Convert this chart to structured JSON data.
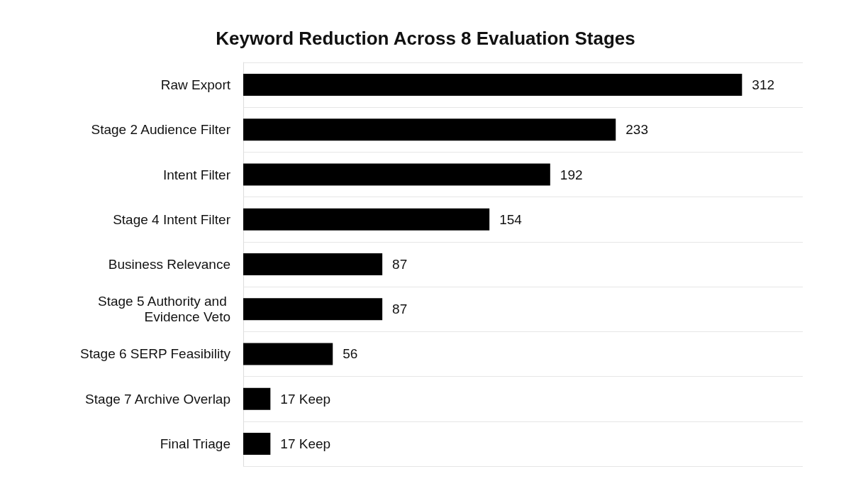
{
  "chart_data": {
    "type": "bar",
    "orientation": "horizontal",
    "title": "Keyword Reduction Across 8 Evaluation Stages",
    "categories": [
      "Raw Export",
      "Stage 2 Audience Filter",
      "Intent Filter",
      "Stage 4 Intent Filter",
      "Business Relevance",
      "Stage 5 Authority and Evidence Veto",
      "Stage 6 SERP Feasibility",
      "Stage 7 Archive Overlap",
      "Final Triage"
    ],
    "values": [
      312,
      233,
      192,
      154,
      87,
      87,
      56,
      17,
      17
    ],
    "value_labels": [
      "312",
      "233",
      "192",
      "154",
      "87",
      "87",
      "56",
      "17 Keep",
      "17 Keep"
    ],
    "color": "#000000",
    "grid": "y",
    "tick_labels": "y"
  }
}
